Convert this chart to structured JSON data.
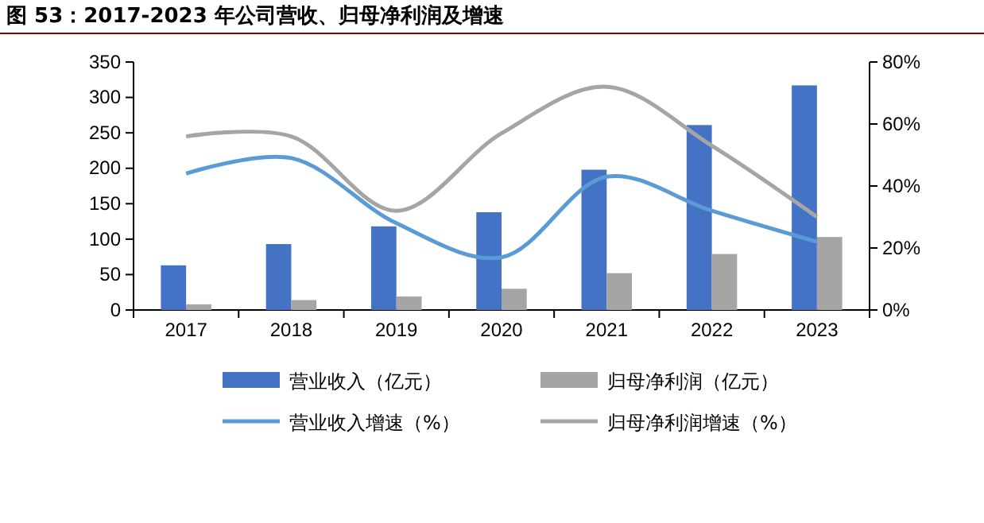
{
  "chart_data": {
    "type": "bar",
    "title": "图 53：2017-2023 年公司营收、归母净利润及增速",
    "categories": [
      "2017",
      "2018",
      "2019",
      "2020",
      "2021",
      "2022",
      "2023"
    ],
    "series": [
      {
        "name": "营业收入（亿元）",
        "color": "#4472c4",
        "values": [
          63,
          93,
          118,
          138,
          198,
          261,
          317
        ]
      },
      {
        "name": "归母净利润（亿元）",
        "color": "#a5a5a5",
        "values": [
          8,
          14,
          19,
          30,
          52,
          79,
          103
        ]
      },
      {
        "name": "营业收入增速（%）",
        "type": "line",
        "axis": "y2",
        "color": "#5b9bd5",
        "values": [
          44,
          49,
          28,
          17,
          43,
          32,
          22
        ]
      },
      {
        "name": "归母净利润增速（%）",
        "type": "line",
        "axis": "y2",
        "color": "#a5a5a5",
        "values": [
          56,
          56,
          32,
          57,
          72,
          53,
          30
        ]
      }
    ],
    "ylim": [
      0,
      350
    ],
    "yticks": [
      0,
      50,
      100,
      150,
      200,
      250,
      300,
      350
    ],
    "y2lim": [
      0,
      80
    ],
    "y2ticks": [
      {
        "value": 0,
        "label": "0%"
      },
      {
        "value": 20,
        "label": "20%"
      },
      {
        "value": 40,
        "label": "40%"
      },
      {
        "value": 60,
        "label": "60%"
      },
      {
        "value": 80,
        "label": "80%"
      }
    ],
    "grid": false,
    "legend": "bottom",
    "marker": "none",
    "line_style": "solid"
  }
}
